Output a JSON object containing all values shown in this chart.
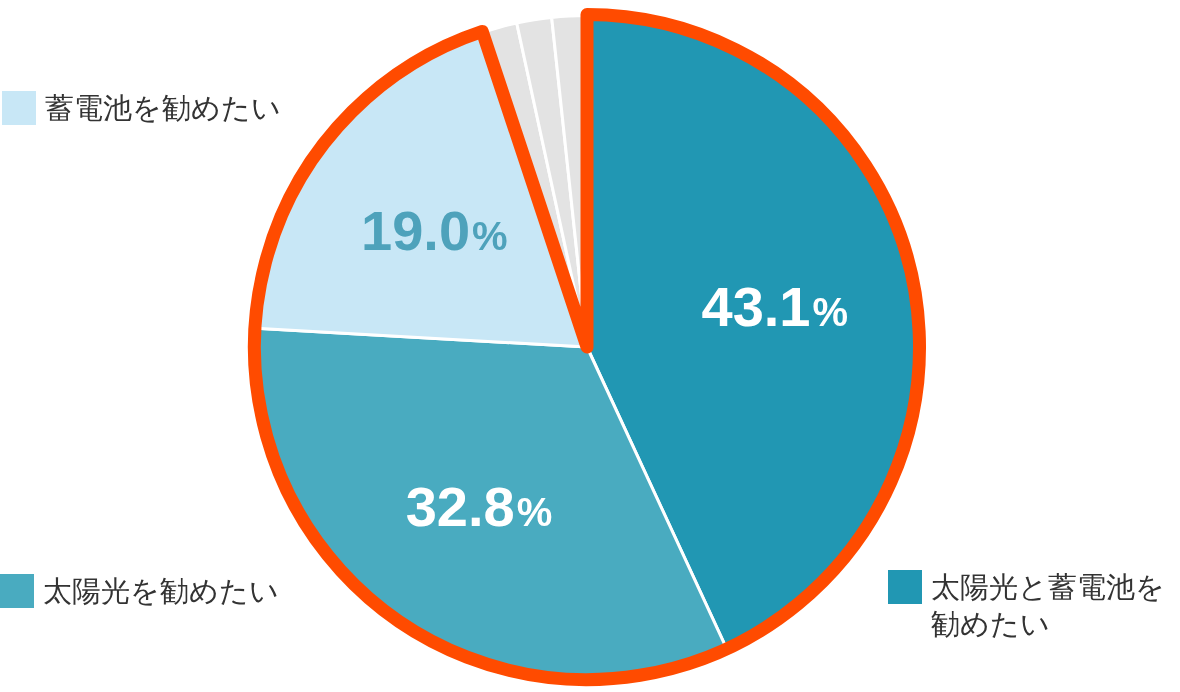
{
  "chart_data": {
    "type": "pie",
    "categories": [
      "太陽光と蓄電池を勧めたい",
      "太陽光を勧めたい",
      "蓄電池を勧めたい",
      null,
      null,
      null
    ],
    "values": [
      43.1,
      32.8,
      19.0,
      1.7,
      1.7,
      1.7
    ],
    "colors": [
      "#2197b3",
      "#49abc0",
      "#c8e7f6",
      "#e3e3e3",
      "#e3e3e3",
      "#e3e3e3"
    ],
    "value_labels": [
      "43.1%",
      "32.8%",
      "19.0%",
      null,
      null,
      null
    ],
    "legend": "left"
  }
}
